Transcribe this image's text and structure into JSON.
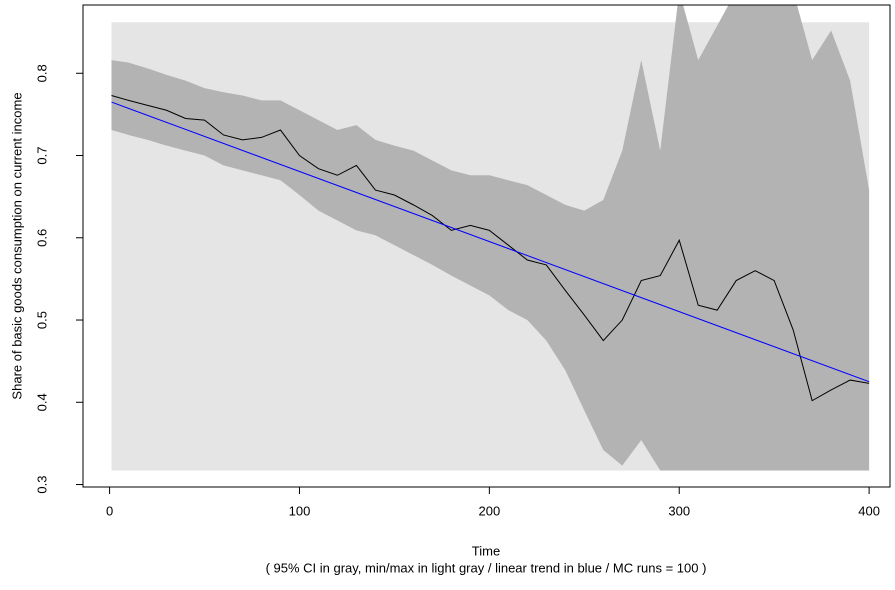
{
  "chart_data": {
    "type": "line",
    "x_label": "Time",
    "subtitle": "( 95% CI in gray, min/max in light gray / linear trend in blue / MC runs = 100 )",
    "y_label": "Share of basic goods consumption on current income",
    "x": [
      1,
      10,
      20,
      30,
      40,
      50,
      60,
      70,
      80,
      90,
      100,
      110,
      120,
      130,
      140,
      150,
      160,
      170,
      180,
      190,
      200,
      210,
      220,
      230,
      240,
      250,
      260,
      270,
      280,
      290,
      300,
      310,
      320,
      330,
      340,
      350,
      360,
      370,
      380,
      390,
      400
    ],
    "series": [
      {
        "color": "#000000",
        "values": [
          0.773,
          0.767,
          0.761,
          0.755,
          0.745,
          0.743,
          0.725,
          0.719,
          0.722,
          0.731,
          0.7,
          0.684,
          0.676,
          0.688,
          0.658,
          0.652,
          0.64,
          0.627,
          0.609,
          0.615,
          0.609,
          0.591,
          0.573,
          0.567,
          0.536,
          0.506,
          0.475,
          0.5,
          0.548,
          0.554,
          0.597,
          0.518,
          0.512,
          0.548,
          0.56,
          0.548,
          0.488,
          0.402,
          0.415,
          0.427,
          0.423
        ]
      }
    ],
    "ci_upper": [
      0.816,
      0.813,
      0.806,
      0.798,
      0.791,
      0.782,
      0.777,
      0.773,
      0.767,
      0.767,
      0.755,
      0.743,
      0.731,
      0.737,
      0.719,
      0.712,
      0.706,
      0.694,
      0.682,
      0.676,
      0.676,
      0.67,
      0.664,
      0.652,
      0.64,
      0.633,
      0.646,
      0.706,
      0.816,
      0.706,
      0.9,
      0.816,
      0.858,
      0.9,
      0.9,
      0.9,
      0.9,
      0.816,
      0.852,
      0.791,
      0.658
    ],
    "ci_lower": [
      0.731,
      0.725,
      0.719,
      0.712,
      0.706,
      0.7,
      0.688,
      0.682,
      0.676,
      0.67,
      0.652,
      0.633,
      0.621,
      0.609,
      0.603,
      0.591,
      0.579,
      0.567,
      0.554,
      0.542,
      0.53,
      0.512,
      0.5,
      0.475,
      0.439,
      0.39,
      0.342,
      0.323,
      0.354,
      0.317,
      0.317,
      0.317,
      0.317,
      0.317,
      0.317,
      0.317,
      0.317,
      0.317,
      0.317,
      0.317,
      0.317
    ],
    "ci_color": "#b3b3b3",
    "min": 0.317,
    "max": 0.862,
    "minmax_color": "#e5e5e5",
    "trend": {
      "x": [
        1,
        400
      ],
      "values": [
        0.765,
        0.425
      ],
      "color": "#0000ff"
    },
    "xlim": [
      -14,
      411
    ],
    "ylim": [
      0.297,
      0.883
    ],
    "xticks": [
      0,
      100,
      200,
      300,
      400
    ],
    "yticks": [
      0.3,
      0.4,
      0.5,
      0.6,
      0.7,
      0.8
    ]
  }
}
